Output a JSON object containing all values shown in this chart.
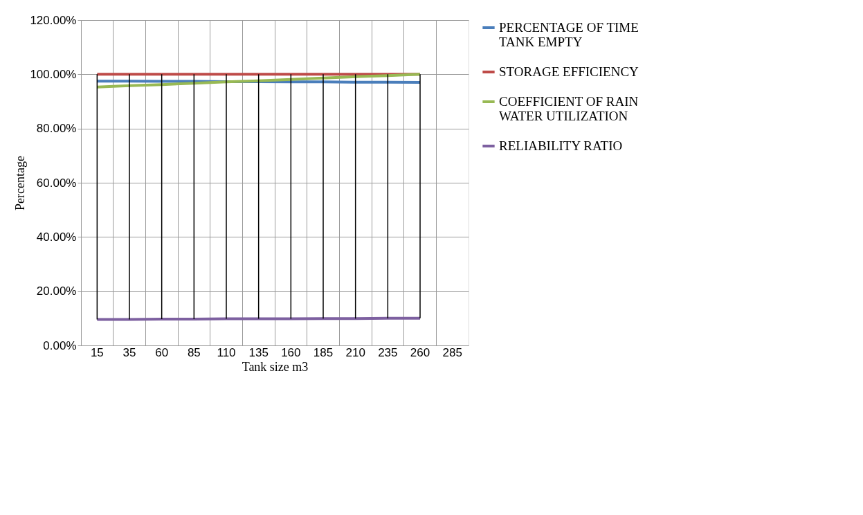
{
  "chart_data": {
    "type": "line",
    "xlabel": "Tank size m3",
    "ylabel": "Percentage",
    "categories": [
      "15",
      "35",
      "60",
      "85",
      "110",
      "135",
      "160",
      "185",
      "210",
      "235",
      "260",
      "285"
    ],
    "ylim": [
      0,
      120
    ],
    "yticks": [
      {
        "value": 0,
        "label": "0.00%"
      },
      {
        "value": 20,
        "label": "20.00%"
      },
      {
        "value": 40,
        "label": "40.00%"
      },
      {
        "value": 60,
        "label": "60.00%"
      },
      {
        "value": 80,
        "label": "80.00%"
      },
      {
        "value": 100,
        "label": "100.00%"
      },
      {
        "value": 120,
        "label": "120.00%"
      }
    ],
    "grid": true,
    "legend": "right",
    "marker": "none",
    "line_style": "solid",
    "series": [
      {
        "name": "PERCENTAGE OF TIME TANK EMPTY",
        "color": "#4a7ebb",
        "values": [
          97.5,
          97.5,
          97.4,
          97.4,
          97.3,
          97.3,
          97.2,
          97.2,
          97.1,
          97.1,
          97.0,
          null
        ]
      },
      {
        "name": "STORAGE EFFICIENCY",
        "color": "#be4b48",
        "values": [
          100,
          100,
          100,
          100,
          100,
          100,
          100,
          100,
          100,
          100,
          100,
          null
        ]
      },
      {
        "name": "COEFFICIENT OF RAIN WATER UTILIZATION",
        "color": "#98b954",
        "values": [
          95.3,
          95.8,
          96.2,
          96.7,
          97.2,
          97.6,
          98.1,
          98.6,
          99.1,
          99.5,
          100,
          null
        ]
      },
      {
        "name": "RELIABILITY RATIO",
        "color": "#7d60a0",
        "values": [
          9.6,
          9.6,
          9.7,
          9.7,
          9.8,
          9.8,
          9.8,
          9.9,
          9.9,
          10.0,
          10.0,
          null
        ]
      }
    ]
  }
}
